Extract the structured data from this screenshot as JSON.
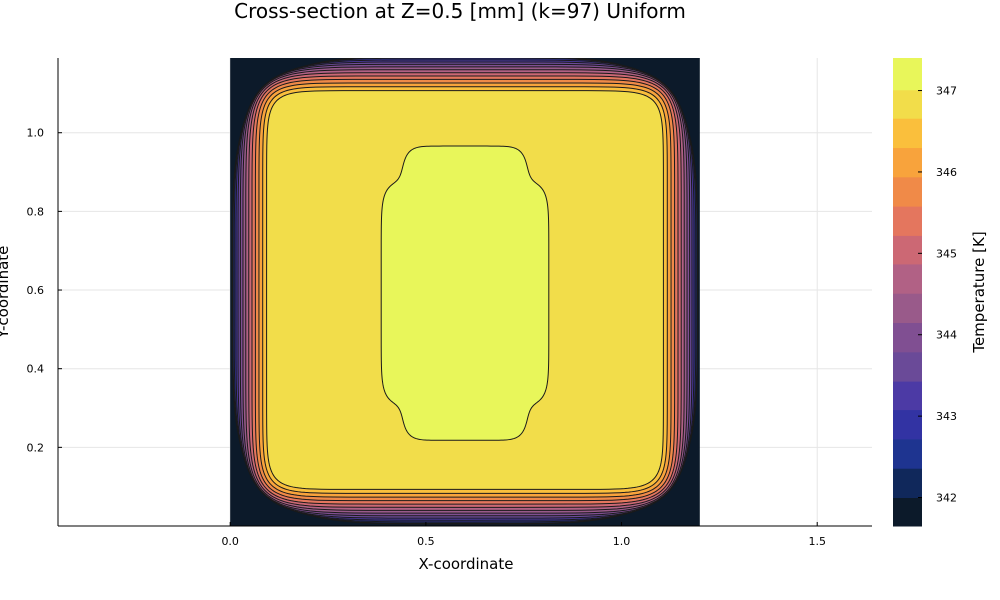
{
  "chart_data": {
    "type": "heatmap",
    "subtype": "filled-contour",
    "title": "Cross-section at Z=0.5 [mm] (k=97) Uniform",
    "xlabel": "X-coordinate",
    "ylabel": "Y-coordinate",
    "colorbar_label": "Temperature [K]",
    "xlim": [
      -0.44,
      1.64
    ],
    "ylim": [
      0.0,
      1.19
    ],
    "x_ticks": [
      0.0,
      0.5,
      1.0,
      1.5
    ],
    "x_tick_labels": [
      "0.0",
      "0.5",
      "1.0",
      "1.5"
    ],
    "y_ticks": [
      0.2,
      0.4,
      0.6,
      0.8,
      1.0
    ],
    "y_tick_labels": [
      "0.2",
      "0.4",
      "0.6",
      "0.8",
      "1.0"
    ],
    "grid": true,
    "domain": {
      "x": [
        0.0,
        1.2
      ],
      "y": [
        0.0,
        1.2
      ]
    },
    "colorbar": {
      "range": [
        341.65,
        347.4
      ],
      "ticks": [
        342,
        343,
        344,
        345,
        346,
        347
      ],
      "tick_labels": [
        "342",
        "343",
        "344",
        "345",
        "346",
        "347"
      ]
    },
    "levels": [
      341.65,
      342.0,
      342.36,
      342.72,
      343.08,
      343.43,
      343.79,
      344.15,
      344.51,
      344.87,
      345.22,
      345.58,
      345.94,
      346.3,
      346.66,
      347.01,
      347.4
    ],
    "level_colors": [
      "#0c1a2a",
      "#10285b",
      "#1e3490",
      "#3233a3",
      "#4c3aa5",
      "#6a4a98",
      "#804f92",
      "#995a8a",
      "#b16185",
      "#cc6874",
      "#e4765e",
      "#f08a48",
      "#f8a33c",
      "#fabf3c",
      "#f2dd4a",
      "#e8f65a"
    ],
    "peak_value": 347.2,
    "min_boundary_value": 341.65
  }
}
